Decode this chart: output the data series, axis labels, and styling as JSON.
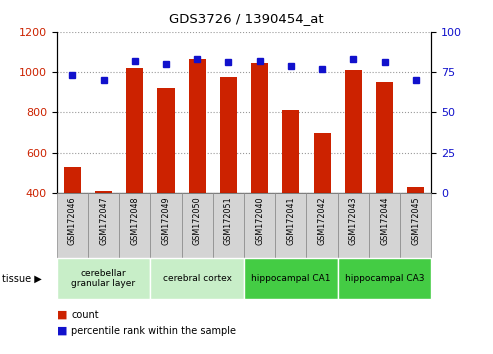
{
  "title": "GDS3726 / 1390454_at",
  "samples": [
    "GSM172046",
    "GSM172047",
    "GSM172048",
    "GSM172049",
    "GSM172050",
    "GSM172051",
    "GSM172040",
    "GSM172041",
    "GSM172042",
    "GSM172043",
    "GSM172044",
    "GSM172045"
  ],
  "counts": [
    530,
    410,
    1020,
    920,
    1065,
    975,
    1045,
    810,
    700,
    1010,
    950,
    430
  ],
  "percentiles": [
    73,
    70,
    82,
    80,
    83,
    81,
    82,
    79,
    77,
    83,
    81,
    70
  ],
  "tissue_groups": [
    {
      "label": "cerebellar\ngranular layer",
      "start": 0,
      "end": 3,
      "color": "#c8eec8"
    },
    {
      "label": "cerebral cortex",
      "start": 3,
      "end": 6,
      "color": "#c8eec8"
    },
    {
      "label": "hippocampal CA1",
      "start": 6,
      "end": 9,
      "color": "#44cc44"
    },
    {
      "label": "hippocampal CA3",
      "start": 9,
      "end": 12,
      "color": "#44cc44"
    }
  ],
  "bar_color": "#cc2200",
  "dot_color": "#1111cc",
  "left_ylim": [
    400,
    1200
  ],
  "right_ylim": [
    0,
    100
  ],
  "left_yticks": [
    400,
    600,
    800,
    1000,
    1200
  ],
  "right_yticks": [
    0,
    25,
    50,
    75,
    100
  ],
  "bar_width": 0.55,
  "tick_label_color_left": "#cc2200",
  "tick_label_color_right": "#1111cc",
  "grid_color": "#999999",
  "cell_color": "#d4d4d4",
  "cell_border": "#888888"
}
